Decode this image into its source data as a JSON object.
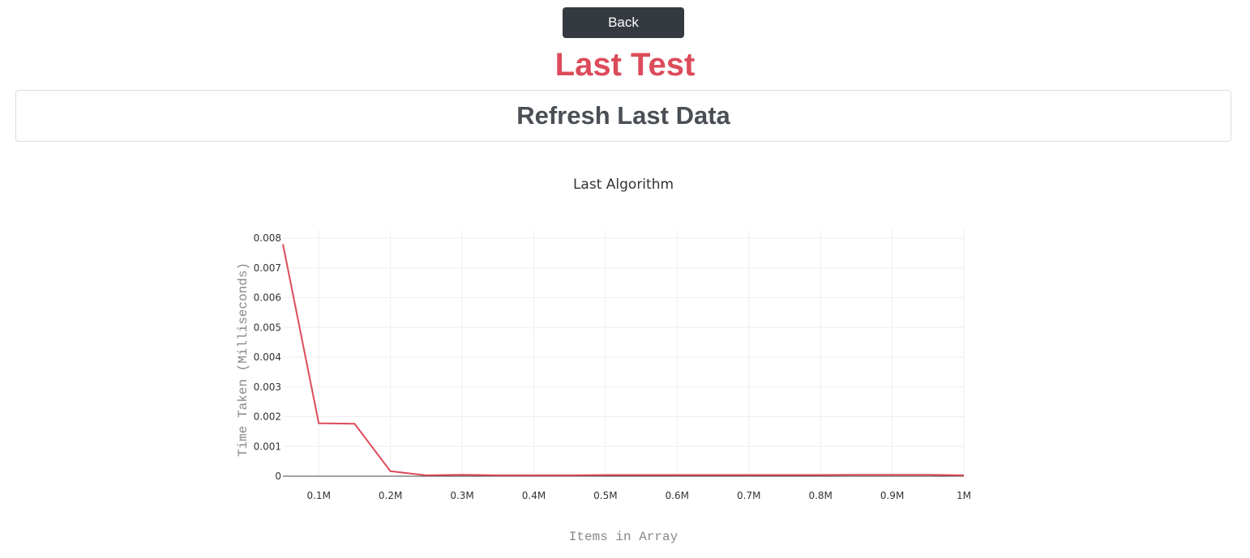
{
  "header": {
    "back_label": "Back",
    "title": "Last Test",
    "refresh_label": "Refresh Last Data"
  },
  "colors": {
    "accent": "#dc4b5a",
    "button_dark": "#343a40",
    "line": "#dc4b5a"
  },
  "chart_data": {
    "type": "line",
    "title": "Last Algorithm",
    "xlabel": "Items in Array",
    "ylabel": "Time Taken (Milliseconds)",
    "xlim": [
      50000,
      1000000
    ],
    "ylim": [
      0,
      0.008
    ],
    "grid": true,
    "x_ticks": [
      {
        "value": 100000,
        "label": "0.1M"
      },
      {
        "value": 200000,
        "label": "0.2M"
      },
      {
        "value": 300000,
        "label": "0.3M"
      },
      {
        "value": 400000,
        "label": "0.4M"
      },
      {
        "value": 500000,
        "label": "0.5M"
      },
      {
        "value": 600000,
        "label": "0.6M"
      },
      {
        "value": 700000,
        "label": "0.7M"
      },
      {
        "value": 800000,
        "label": "0.8M"
      },
      {
        "value": 900000,
        "label": "0.9M"
      },
      {
        "value": 1000000,
        "label": "1M"
      }
    ],
    "y_ticks": [
      {
        "value": 0,
        "label": "0"
      },
      {
        "value": 0.001,
        "label": "0.001"
      },
      {
        "value": 0.002,
        "label": "0.002"
      },
      {
        "value": 0.003,
        "label": "0.003"
      },
      {
        "value": 0.004,
        "label": "0.004"
      },
      {
        "value": 0.005,
        "label": "0.005"
      },
      {
        "value": 0.006,
        "label": "0.006"
      },
      {
        "value": 0.007,
        "label": "0.007"
      },
      {
        "value": 0.008,
        "label": "0.008"
      }
    ],
    "series": [
      {
        "x": [
          50000,
          100000,
          150000,
          200000,
          250000,
          300000,
          350000,
          400000,
          450000,
          500000,
          550000,
          600000,
          650000,
          700000,
          750000,
          800000,
          850000,
          900000,
          950000,
          1000000
        ],
        "y": [
          0.0078,
          0.00178,
          0.00176,
          0.00017,
          3e-05,
          5e-05,
          3e-05,
          3e-05,
          3e-05,
          4e-05,
          4e-05,
          4e-05,
          4e-05,
          4e-05,
          4e-05,
          4e-05,
          5e-05,
          5e-05,
          5e-05,
          3e-05
        ]
      }
    ]
  }
}
